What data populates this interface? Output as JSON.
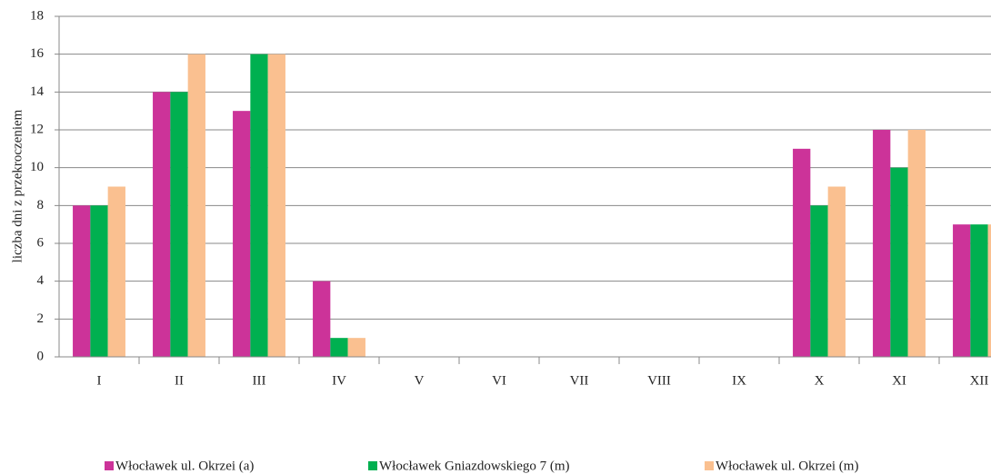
{
  "chart_data": {
    "type": "bar",
    "ylabel": "liczba dni z przekroczeniem",
    "categories": [
      "I",
      "II",
      "III",
      "IV",
      "V",
      "VI",
      "VII",
      "VIII",
      "IX",
      "X",
      "XI",
      "XII"
    ],
    "series": [
      {
        "name": "Włocławek ul. Okrzei (a)",
        "color": "#cc3399",
        "values": [
          8,
          14,
          13,
          4,
          0,
          0,
          0,
          0,
          0,
          11,
          12,
          7
        ]
      },
      {
        "name": "Włocławek Gniazdowskiego 7 (m)",
        "color": "#00b050",
        "values": [
          8,
          14,
          16,
          1,
          0,
          0,
          0,
          0,
          0,
          8,
          10,
          7
        ]
      },
      {
        "name": "Włocławek ul. Okrzei (m)",
        "color": "#fac090",
        "values": [
          9,
          16,
          16,
          1,
          0,
          0,
          0,
          0,
          0,
          9,
          12,
          7
        ]
      }
    ],
    "ylim": [
      0,
      18
    ],
    "yticks": [
      0,
      2,
      4,
      6,
      8,
      10,
      12,
      14,
      16,
      18
    ],
    "grid": true,
    "legend": "bottom"
  }
}
